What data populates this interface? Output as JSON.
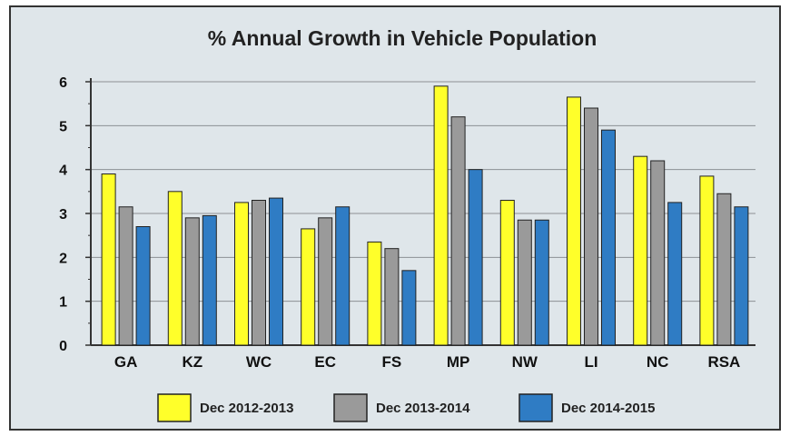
{
  "chart_data": {
    "type": "bar",
    "title": "% Annual Growth in Vehicle Population",
    "categories": [
      "GA",
      "KZ",
      "WC",
      "EC",
      "FS",
      "MP",
      "NW",
      "LI",
      "NC",
      "RSA"
    ],
    "series": [
      {
        "name": "Dec 2012-2013",
        "color": "#ffff2a",
        "values": [
          3.9,
          3.5,
          3.25,
          2.65,
          2.35,
          5.9,
          3.3,
          5.65,
          4.3,
          3.85
        ]
      },
      {
        "name": "Dec 2013-2014",
        "color": "#9a9a9a",
        "values": [
          3.15,
          2.9,
          3.3,
          2.9,
          2.2,
          5.2,
          2.85,
          5.4,
          4.2,
          3.45
        ]
      },
      {
        "name": "Dec 2014-2015",
        "color": "#2f7cc4",
        "values": [
          2.7,
          2.95,
          3.35,
          3.15,
          1.7,
          4.0,
          2.85,
          4.9,
          3.25,
          3.15
        ]
      }
    ],
    "y_ticks": [
      "0",
      "1",
      "2",
      "3",
      "4",
      "5",
      "6"
    ],
    "ylim": [
      0,
      6
    ],
    "xlabel": "",
    "ylabel": "",
    "grid": true,
    "legend_position": "bottom"
  }
}
